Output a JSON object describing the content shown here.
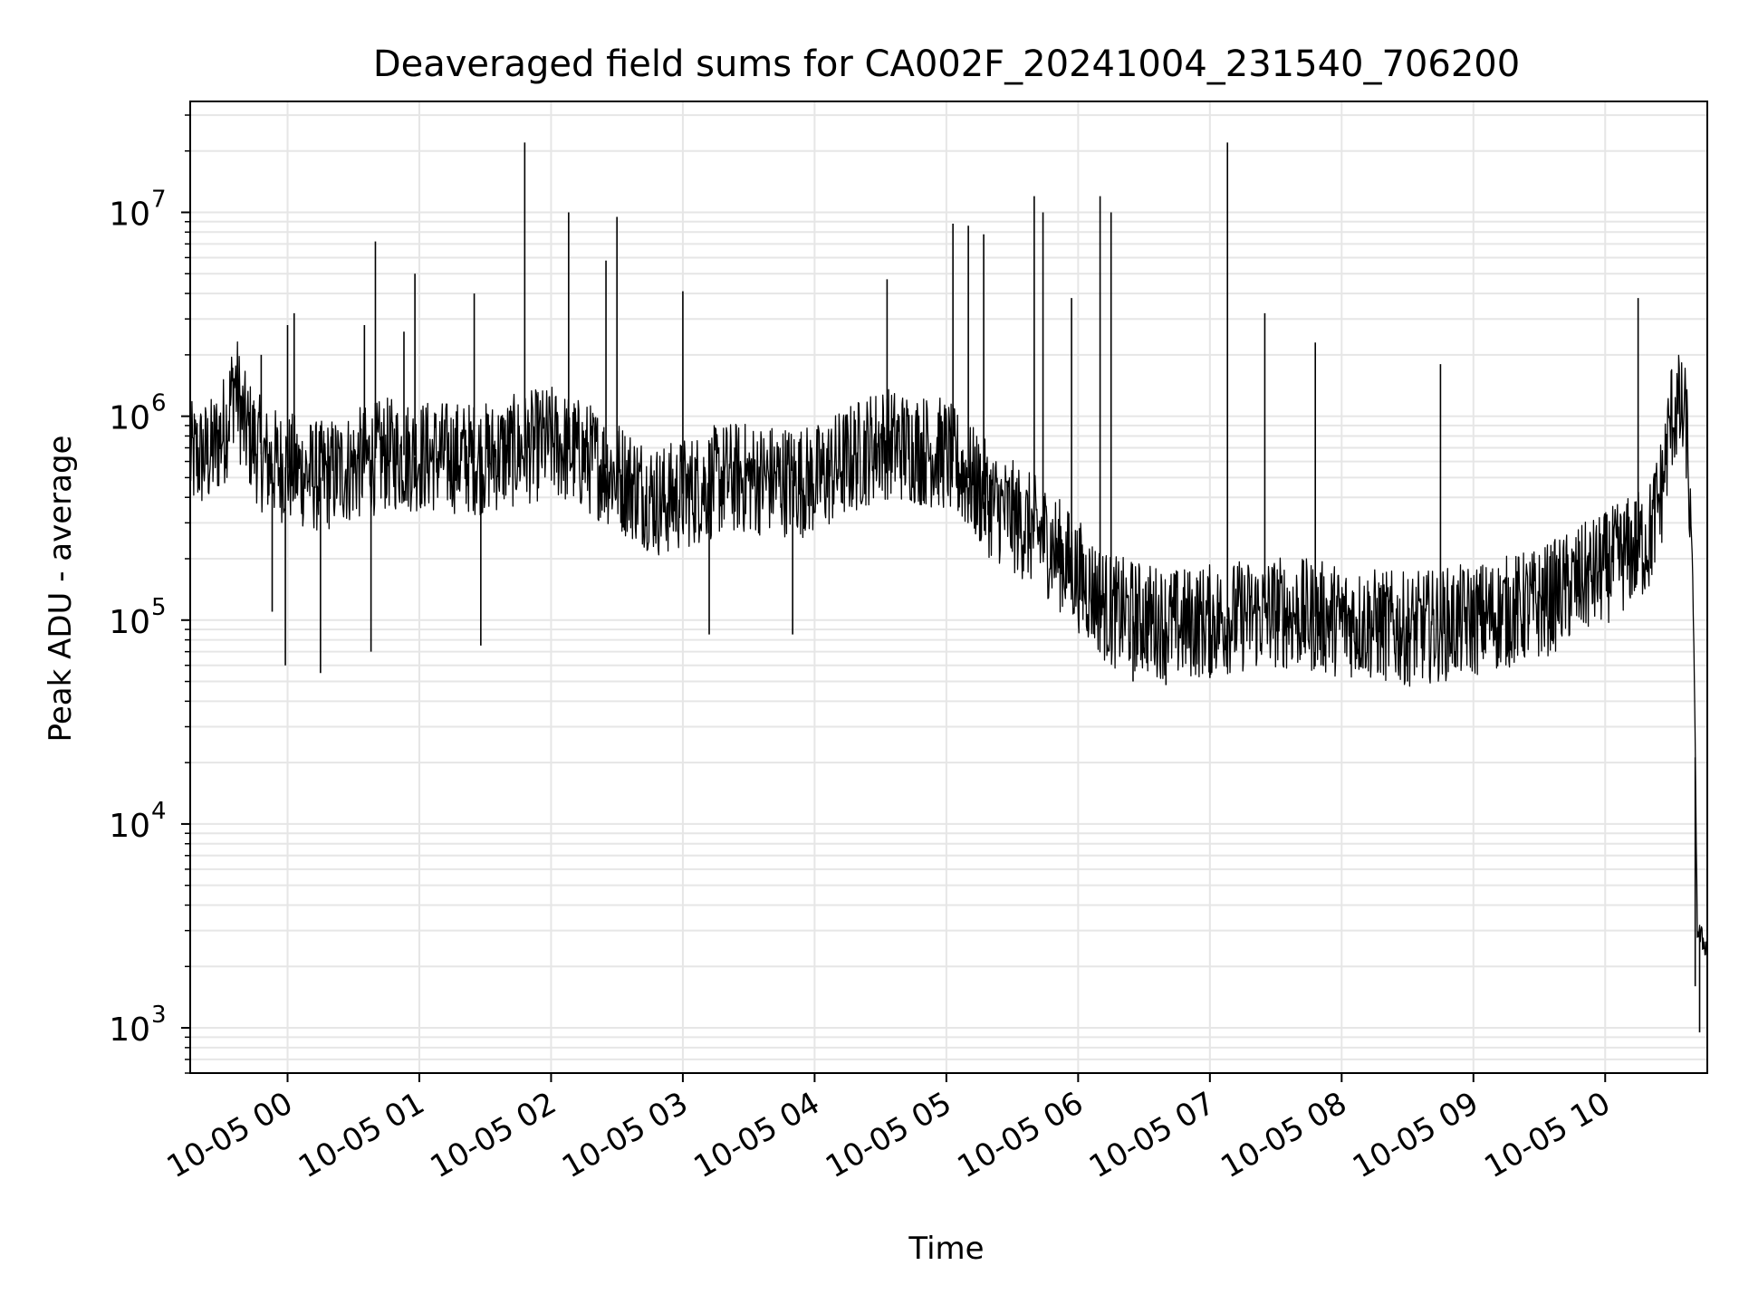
{
  "chart_data": {
    "type": "line",
    "title": "Deaveraged field sums for CA002F_20241004_231540_706200",
    "xlabel": "Time",
    "ylabel": "Peak ADU - average",
    "y_scale": "log",
    "ylim": [
      600,
      35000000
    ],
    "xlim": [
      "2024-10-04 23:15:40",
      "2024-10-05 10:46:30"
    ],
    "grid": true,
    "line_color": "#000000",
    "grid_color": "#e6e6e6",
    "x_ticks": [
      {
        "value": "2024-10-05 00:00",
        "label": "10-05 00"
      },
      {
        "value": "2024-10-05 01:00",
        "label": "10-05 01"
      },
      {
        "value": "2024-10-05 02:00",
        "label": "10-05 02"
      },
      {
        "value": "2024-10-05 03:00",
        "label": "10-05 03"
      },
      {
        "value": "2024-10-05 04:00",
        "label": "10-05 04"
      },
      {
        "value": "2024-10-05 05:00",
        "label": "10-05 05"
      },
      {
        "value": "2024-10-05 06:00",
        "label": "10-05 06"
      },
      {
        "value": "2024-10-05 07:00",
        "label": "10-05 07"
      },
      {
        "value": "2024-10-05 08:00",
        "label": "10-05 08"
      },
      {
        "value": "2024-10-05 09:00",
        "label": "10-05 09"
      },
      {
        "value": "2024-10-05 10:00",
        "label": "10-05 10"
      }
    ],
    "y_ticks": [
      {
        "value": 1000,
        "base": "10",
        "exponent": "3"
      },
      {
        "value": 10000,
        "base": "10",
        "exponent": "4"
      },
      {
        "value": 100000,
        "base": "10",
        "exponent": "5"
      },
      {
        "value": 1000000,
        "base": "10",
        "exponent": "6"
      },
      {
        "value": 10000000,
        "base": "10",
        "exponent": "7"
      }
    ],
    "series": [
      {
        "baseline": [
          [
            "2024-10-04 23:15:40",
            620000
          ],
          [
            "2024-10-04 23:25",
            650000
          ],
          [
            "2024-10-04 23:32",
            900000
          ],
          [
            "2024-10-04 23:36",
            1500000
          ],
          [
            "2024-10-04 23:40",
            900000
          ],
          [
            "2024-10-04 23:50",
            600000
          ],
          [
            "2024-10-05 00:15",
            500000
          ],
          [
            "2024-10-05 00:45",
            650000
          ],
          [
            "2024-10-05 01:30",
            620000
          ],
          [
            "2024-10-05 02:00",
            750000
          ],
          [
            "2024-10-05 02:20",
            600000
          ],
          [
            "2024-10-05 02:50",
            380000
          ],
          [
            "2024-10-05 03:20",
            500000
          ],
          [
            "2024-10-05 04:00",
            480000
          ],
          [
            "2024-10-05 04:30",
            750000
          ],
          [
            "2024-10-05 05:00",
            650000
          ],
          [
            "2024-10-05 05:20",
            380000
          ],
          [
            "2024-10-05 05:45",
            250000
          ],
          [
            "2024-10-05 06:15",
            110000
          ],
          [
            "2024-10-05 06:45",
            95000
          ],
          [
            "2024-10-05 07:30",
            110000
          ],
          [
            "2024-10-05 08:00",
            100000
          ],
          [
            "2024-10-05 08:30",
            90000
          ],
          [
            "2024-10-05 09:00",
            100000
          ],
          [
            "2024-10-05 09:30",
            120000
          ],
          [
            "2024-10-05 10:00",
            180000
          ],
          [
            "2024-10-05 10:20",
            250000
          ],
          [
            "2024-10-05 10:26",
            450000
          ],
          [
            "2024-10-05 10:30",
            1000000
          ],
          [
            "2024-10-05 10:33",
            1100000
          ],
          [
            "2024-10-05 10:37",
            900000
          ],
          [
            "2024-10-05 10:40",
            150000
          ],
          [
            "2024-10-05 10:42",
            3000
          ],
          [
            "2024-10-05 10:46",
            2500
          ]
        ],
        "spikes": [
          [
            "2024-10-04 23:48",
            2000000
          ],
          [
            "2024-10-05 00:00",
            2800000
          ],
          [
            "2024-10-05 00:03",
            3200000
          ],
          [
            "2024-10-05 00:35",
            2800000
          ],
          [
            "2024-10-05 00:40",
            7200000
          ],
          [
            "2024-10-05 00:53",
            2600000
          ],
          [
            "2024-10-05 00:58",
            5000000
          ],
          [
            "2024-10-05 01:25",
            4000000
          ],
          [
            "2024-10-05 01:48",
            22000000
          ],
          [
            "2024-10-05 02:08",
            10000000
          ],
          [
            "2024-10-05 02:25",
            5800000
          ],
          [
            "2024-10-05 02:30",
            9500000
          ],
          [
            "2024-10-05 03:00",
            4100000
          ],
          [
            "2024-10-05 04:33",
            4700000
          ],
          [
            "2024-10-05 05:03",
            8800000
          ],
          [
            "2024-10-05 05:10",
            8600000
          ],
          [
            "2024-10-05 05:17",
            7800000
          ],
          [
            "2024-10-05 05:40",
            12000000
          ],
          [
            "2024-10-05 05:44",
            10000000
          ],
          [
            "2024-10-05 05:57",
            3800000
          ],
          [
            "2024-10-05 06:10",
            12000000
          ],
          [
            "2024-10-05 06:15",
            10000000
          ],
          [
            "2024-10-05 07:08",
            22000000
          ],
          [
            "2024-10-05 07:25",
            3200000
          ],
          [
            "2024-10-05 07:48",
            2300000
          ],
          [
            "2024-10-05 08:45",
            1800000
          ],
          [
            "2024-10-05 10:15",
            3800000
          ]
        ],
        "dips": [
          [
            "2024-10-04 23:53",
            110000
          ],
          [
            "2024-10-04 23:59",
            60000
          ],
          [
            "2024-10-05 00:15",
            55000
          ],
          [
            "2024-10-05 00:38",
            70000
          ],
          [
            "2024-10-05 01:28",
            75000
          ],
          [
            "2024-10-05 03:12",
            85000
          ],
          [
            "2024-10-05 03:50",
            85000
          ],
          [
            "2024-10-05 06:25",
            50000
          ],
          [
            "2024-10-05 06:40",
            48000
          ],
          [
            "2024-10-05 07:00",
            52000
          ],
          [
            "2024-10-05 08:30",
            50000
          ],
          [
            "2024-10-05 10:41",
            1600
          ],
          [
            "2024-10-05 10:43",
            950
          ]
        ]
      }
    ]
  }
}
